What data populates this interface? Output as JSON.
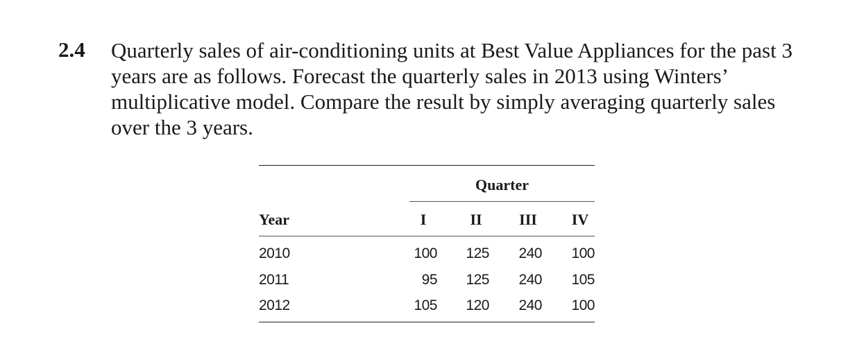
{
  "problem": {
    "number": "2.4",
    "text": "Quarterly sales of air-conditioning units at Best Value Appliances for the past 3 years are as follows. Forecast the quarterly sales in 2013 using Winters’ multiplicative model. Compare the result by simply averaging quarterly sales over the 3 years."
  },
  "table": {
    "group_header": "Quarter",
    "columns": [
      "Year",
      "I",
      "II",
      "III",
      "IV"
    ],
    "rows": [
      [
        "2010",
        100,
        125,
        240,
        100
      ],
      [
        "2011",
        95,
        125,
        240,
        105
      ],
      [
        "2012",
        105,
        120,
        240,
        100
      ]
    ]
  }
}
